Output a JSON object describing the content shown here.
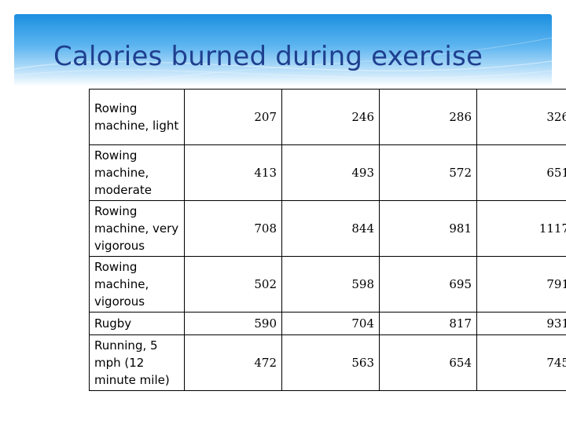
{
  "slide": {
    "title": "Calories burned during exercise"
  },
  "table": {
    "rows": [
      {
        "activity": "Rowing machine, light",
        "values": [
          "207",
          "246",
          "286",
          "326"
        ]
      },
      {
        "activity": "Rowing machine, moderate",
        "values": [
          "413",
          "493",
          "572",
          "651"
        ]
      },
      {
        "activity": "Rowing machine, very vigorous",
        "values": [
          "708",
          "844",
          "981",
          "1117"
        ]
      },
      {
        "activity": "Rowing machine, vigorous",
        "values": [
          "502",
          "598",
          "695",
          "791"
        ]
      },
      {
        "activity": "Rugby",
        "values": [
          "590",
          "704",
          "817",
          "931"
        ]
      },
      {
        "activity": "Running, 5 mph (12 minute mile)",
        "values": [
          "472",
          "563",
          "654",
          "745"
        ]
      }
    ]
  },
  "colors": {
    "title": "#1f3f8f",
    "banner_top": "#1b8fe0",
    "banner_bottom": "#cfe9fb"
  }
}
